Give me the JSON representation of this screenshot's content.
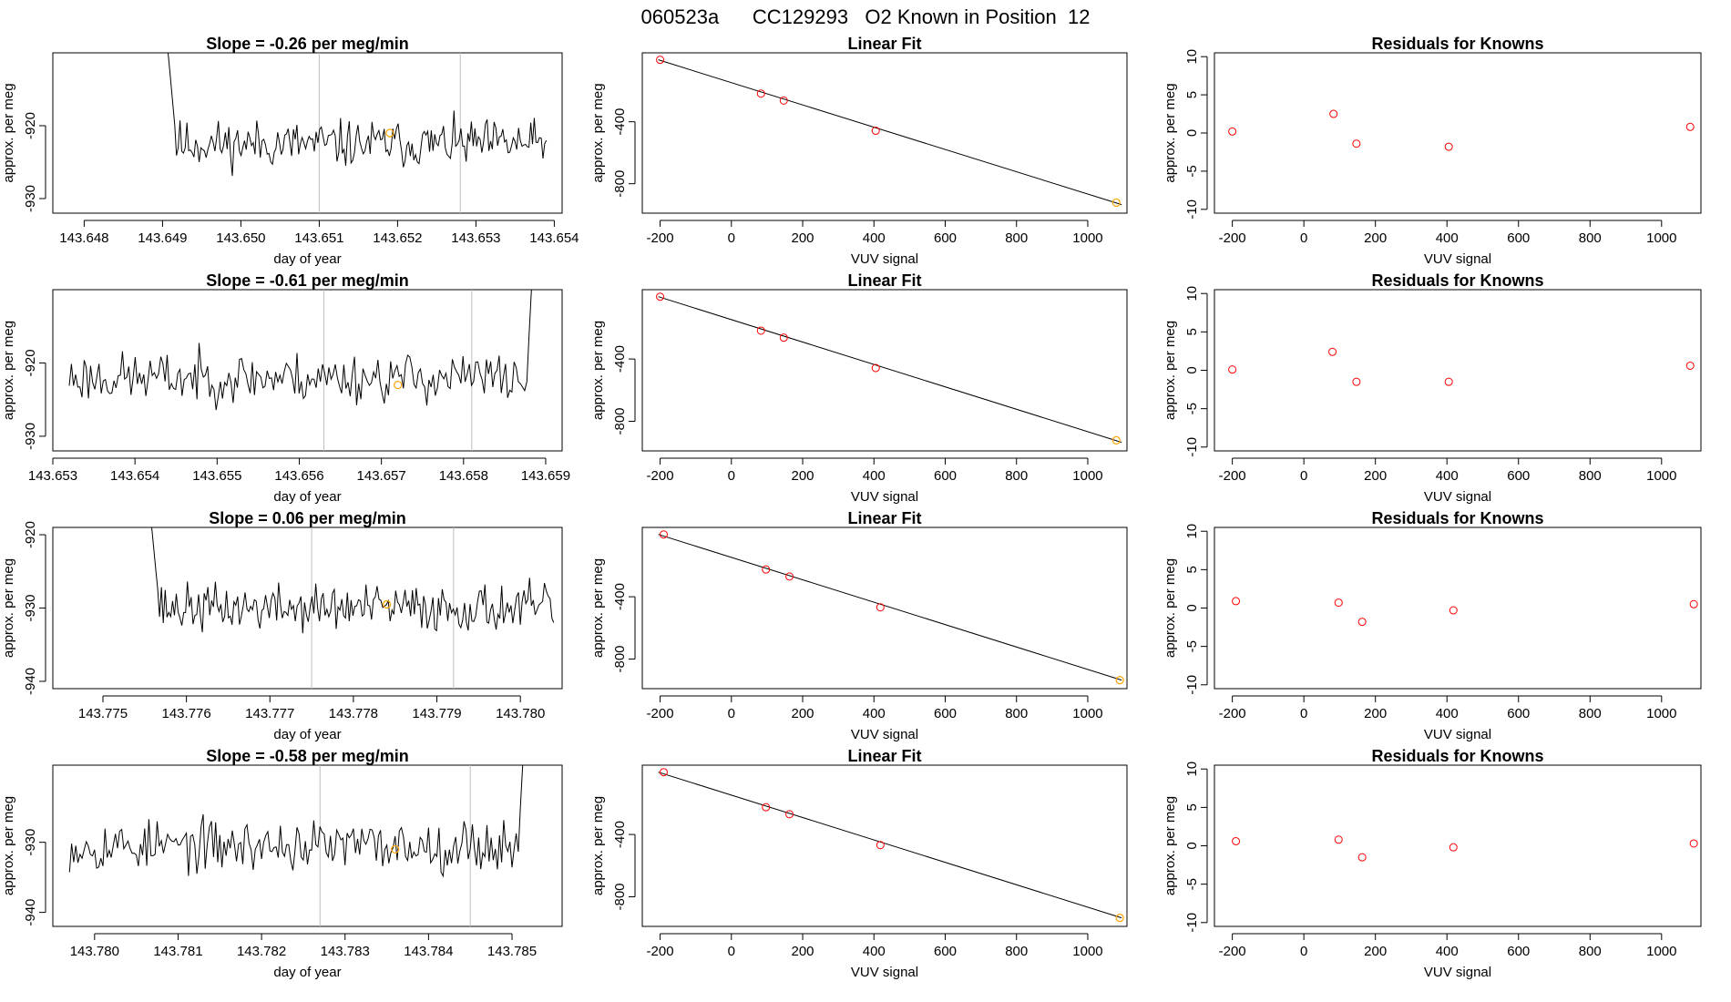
{
  "figure": {
    "title": "060523a      CC129293   O2 Known in Position  12"
  },
  "colors": {
    "trace": "#000000",
    "frame": "#000000",
    "vline": "#bebebe",
    "orange": "#ffa500",
    "red": "#ff0000"
  },
  "chart_data": [
    {
      "type": "line",
      "panel": "row1-timeseries",
      "title": "Slope =  -0.26  per meg/min",
      "xlabel": "day of year",
      "ylabel": "approx. per meg",
      "xlim": [
        143.6476,
        143.6541
      ],
      "ylim": [
        -932,
        -910
      ],
      "xticks": [
        143.648,
        143.649,
        143.65,
        143.651,
        143.652,
        143.653,
        143.654
      ],
      "xtick_labels": [
        "143.648",
        "143.649",
        "143.650",
        "143.651",
        "143.652",
        "143.653",
        "143.654"
      ],
      "yticks": [
        -930,
        -920
      ],
      "ytick_labels": [
        "-930",
        "-920"
      ],
      "trace": {
        "x_start": 143.649,
        "x_end": 143.6539,
        "baseline": -922.5,
        "noise": 1.6,
        "spike_start": true,
        "spike_end": false,
        "seed": 11
      },
      "vlines": [
        143.651,
        143.6528
      ],
      "orange_point": {
        "x": 143.6519,
        "y": -921
      }
    },
    {
      "type": "scatter",
      "panel": "row1-linear-fit",
      "title": "Linear Fit",
      "xlabel": "VUV signal",
      "ylabel": "approx. per meg",
      "xlim": [
        -250,
        1110
      ],
      "ylim": [
        -990,
        45
      ],
      "xticks": [
        -200,
        0,
        200,
        400,
        600,
        800,
        1000
      ],
      "xtick_labels": [
        "-200",
        "0",
        "200",
        "400",
        "600",
        "800",
        "1000"
      ],
      "yticks": [
        -800,
        -400
      ],
      "ytick_labels": [
        "-800",
        "-400"
      ],
      "fit_line": {
        "x": [
          -205,
          1095
        ],
        "y": [
          0,
          -935
        ]
      },
      "points": [
        {
          "x": -200,
          "y": 0
        },
        {
          "x": 83,
          "y": -218
        },
        {
          "x": 147,
          "y": -263
        },
        {
          "x": 405,
          "y": -458
        }
      ],
      "orange_points": [
        {
          "x": 1080,
          "y": -922
        }
      ]
    },
    {
      "type": "scatter",
      "panel": "row1-residuals",
      "title": "Residuals for Knowns",
      "xlabel": "VUV signal",
      "ylabel": "approx. per meg",
      "xlim": [
        -250,
        1110
      ],
      "ylim": [
        -10.5,
        10.5
      ],
      "xticks": [
        -200,
        0,
        200,
        400,
        600,
        800,
        1000
      ],
      "xtick_labels": [
        "-200",
        "0",
        "200",
        "400",
        "600",
        "800",
        "1000"
      ],
      "yticks": [
        -10,
        -5,
        0,
        5,
        10
      ],
      "ytick_labels": [
        "-10",
        "-5",
        "0",
        "5",
        "10"
      ],
      "points": [
        {
          "x": -200,
          "y": 0.2
        },
        {
          "x": 83,
          "y": 2.5
        },
        {
          "x": 147,
          "y": -1.4
        },
        {
          "x": 405,
          "y": -1.8
        },
        {
          "x": 1080,
          "y": 0.8
        }
      ]
    },
    {
      "type": "line",
      "panel": "row2-timeseries",
      "title": "Slope =  -0.61  per meg/min",
      "xlabel": "day of year",
      "ylabel": "approx. per meg",
      "xlim": [
        143.653,
        143.6592
      ],
      "ylim": [
        -932,
        -910
      ],
      "xticks": [
        143.653,
        143.654,
        143.655,
        143.656,
        143.657,
        143.658,
        143.659
      ],
      "xtick_labels": [
        "143.653",
        "143.654",
        "143.655",
        "143.656",
        "143.657",
        "143.658",
        "143.659"
      ],
      "yticks": [
        -930,
        -920
      ],
      "ytick_labels": [
        "-930",
        "-920"
      ],
      "trace": {
        "x_start": 143.6532,
        "x_end": 143.6589,
        "baseline": -922,
        "noise": 1.7,
        "spike_start": false,
        "spike_end": true,
        "seed": 23
      },
      "vlines": [
        143.6563,
        143.6581
      ],
      "orange_point": {
        "x": 143.6572,
        "y": -923
      }
    },
    {
      "type": "scatter",
      "panel": "row2-linear-fit",
      "title": "Linear Fit",
      "xlabel": "VUV signal",
      "ylabel": "approx. per meg",
      "xlim": [
        -250,
        1110
      ],
      "ylim": [
        -990,
        45
      ],
      "xticks": [
        -200,
        0,
        200,
        400,
        600,
        800,
        1000
      ],
      "xtick_labels": [
        "-200",
        "0",
        "200",
        "400",
        "600",
        "800",
        "1000"
      ],
      "yticks": [
        -800,
        -400
      ],
      "ytick_labels": [
        "-800",
        "-400"
      ],
      "fit_line": {
        "x": [
          -205,
          1095
        ],
        "y": [
          0,
          -935
        ]
      },
      "points": [
        {
          "x": -200,
          "y": 0
        },
        {
          "x": 83,
          "y": -218
        },
        {
          "x": 147,
          "y": -263
        },
        {
          "x": 405,
          "y": -458
        }
      ],
      "orange_points": [
        {
          "x": 1080,
          "y": -922
        }
      ]
    },
    {
      "type": "scatter",
      "panel": "row2-residuals",
      "title": "Residuals for Knowns",
      "xlabel": "VUV signal",
      "ylabel": "approx. per meg",
      "xlim": [
        -250,
        1110
      ],
      "ylim": [
        -10.5,
        10.5
      ],
      "xticks": [
        -200,
        0,
        200,
        400,
        600,
        800,
        1000
      ],
      "xtick_labels": [
        "-200",
        "0",
        "200",
        "400",
        "600",
        "800",
        "1000"
      ],
      "yticks": [
        -10,
        -5,
        0,
        5,
        10
      ],
      "ytick_labels": [
        "-10",
        "-5",
        "0",
        "5",
        "10"
      ],
      "points": [
        {
          "x": -200,
          "y": 0.1
        },
        {
          "x": 80,
          "y": 2.4
        },
        {
          "x": 147,
          "y": -1.5
        },
        {
          "x": 405,
          "y": -1.5
        },
        {
          "x": 1080,
          "y": 0.6
        }
      ]
    },
    {
      "type": "line",
      "panel": "row3-timeseries",
      "title": "Slope =  0.06  per meg/min",
      "xlabel": "day of year",
      "ylabel": "approx. per meg",
      "xlim": [
        143.7744,
        143.7805
      ],
      "ylim": [
        -941,
        -919
      ],
      "xticks": [
        143.775,
        143.776,
        143.777,
        143.778,
        143.779,
        143.78
      ],
      "xtick_labels": [
        "143.775",
        "143.776",
        "143.777",
        "143.778",
        "143.779",
        "143.780"
      ],
      "yticks": [
        -940,
        -930,
        -920
      ],
      "ytick_labels": [
        "-940",
        "-930",
        "-920"
      ],
      "trace": {
        "x_start": 143.7755,
        "x_end": 143.7804,
        "baseline": -930,
        "noise": 1.6,
        "spike_start": true,
        "spike_end": false,
        "seed": 37
      },
      "vlines": [
        143.7775,
        143.7792
      ],
      "orange_point": {
        "x": 143.7784,
        "y": -929.5
      }
    },
    {
      "type": "scatter",
      "panel": "row3-linear-fit",
      "title": "Linear Fit",
      "xlabel": "VUV signal",
      "ylabel": "approx. per meg",
      "xlim": [
        -250,
        1110
      ],
      "ylim": [
        -990,
        45
      ],
      "xticks": [
        -200,
        0,
        200,
        400,
        600,
        800,
        1000
      ],
      "xtick_labels": [
        "-200",
        "0",
        "200",
        "400",
        "600",
        "800",
        "1000"
      ],
      "yticks": [
        -800,
        -400
      ],
      "ytick_labels": [
        "-800",
        "-400"
      ],
      "fit_line": {
        "x": [
          -205,
          1095
        ],
        "y": [
          0,
          -935
        ]
      },
      "points": [
        {
          "x": -190,
          "y": 0
        },
        {
          "x": 97,
          "y": -225
        },
        {
          "x": 163,
          "y": -270
        },
        {
          "x": 418,
          "y": -468
        }
      ],
      "orange_points": [
        {
          "x": 1090,
          "y": -935
        }
      ]
    },
    {
      "type": "scatter",
      "panel": "row3-residuals",
      "title": "Residuals for Knowns",
      "xlabel": "VUV signal",
      "ylabel": "approx. per meg",
      "xlim": [
        -250,
        1110
      ],
      "ylim": [
        -10.5,
        10.5
      ],
      "xticks": [
        -200,
        0,
        200,
        400,
        600,
        800,
        1000
      ],
      "xtick_labels": [
        "-200",
        "0",
        "200",
        "400",
        "600",
        "800",
        "1000"
      ],
      "yticks": [
        -10,
        -5,
        0,
        5,
        10
      ],
      "ytick_labels": [
        "-10",
        "-5",
        "0",
        "5",
        "10"
      ],
      "points": [
        {
          "x": -190,
          "y": 0.9
        },
        {
          "x": 97,
          "y": 0.7
        },
        {
          "x": 163,
          "y": -1.8
        },
        {
          "x": 418,
          "y": -0.3
        },
        {
          "x": 1090,
          "y": 0.5
        }
      ]
    },
    {
      "type": "line",
      "panel": "row4-timeseries",
      "title": "Slope =  -0.58  per meg/min",
      "xlabel": "day of year",
      "ylabel": "approx. per meg",
      "xlim": [
        143.7795,
        143.7856
      ],
      "ylim": [
        -942,
        -919
      ],
      "xticks": [
        143.78,
        143.781,
        143.782,
        143.783,
        143.784,
        143.785
      ],
      "xtick_labels": [
        "143.780",
        "143.781",
        "143.782",
        "143.783",
        "143.784",
        "143.785"
      ],
      "yticks": [
        -940,
        -930
      ],
      "ytick_labels": [
        "-940",
        "-930"
      ],
      "trace": {
        "x_start": 143.7797,
        "x_end": 143.7852,
        "baseline": -930.5,
        "noise": 1.8,
        "spike_start": false,
        "spike_end": true,
        "seed": 53
      },
      "vlines": [
        143.7827,
        143.7845
      ],
      "orange_point": {
        "x": 143.7836,
        "y": -931
      }
    },
    {
      "type": "scatter",
      "panel": "row4-linear-fit",
      "title": "Linear Fit",
      "xlabel": "VUV signal",
      "ylabel": "approx. per meg",
      "xlim": [
        -250,
        1110
      ],
      "ylim": [
        -990,
        45
      ],
      "xticks": [
        -200,
        0,
        200,
        400,
        600,
        800,
        1000
      ],
      "xtick_labels": [
        "-200",
        "0",
        "200",
        "400",
        "600",
        "800",
        "1000"
      ],
      "yticks": [
        -800,
        -400
      ],
      "ytick_labels": [
        "-800",
        "-400"
      ],
      "fit_line": {
        "x": [
          -205,
          1095
        ],
        "y": [
          0,
          -935
        ]
      },
      "points": [
        {
          "x": -190,
          "y": 0
        },
        {
          "x": 97,
          "y": -225
        },
        {
          "x": 163,
          "y": -270
        },
        {
          "x": 418,
          "y": -468
        }
      ],
      "orange_points": [
        {
          "x": 1090,
          "y": -935
        }
      ]
    },
    {
      "type": "scatter",
      "panel": "row4-residuals",
      "title": "Residuals for Knowns",
      "xlabel": "VUV signal",
      "ylabel": "approx. per meg",
      "xlim": [
        -250,
        1110
      ],
      "ylim": [
        -10.5,
        10.5
      ],
      "xticks": [
        -200,
        0,
        200,
        400,
        600,
        800,
        1000
      ],
      "xtick_labels": [
        "-200",
        "0",
        "200",
        "400",
        "600",
        "800",
        "1000"
      ],
      "yticks": [
        -10,
        -5,
        0,
        5,
        10
      ],
      "ytick_labels": [
        "-10",
        "-5",
        "0",
        "5",
        "10"
      ],
      "points": [
        {
          "x": -190,
          "y": 0.6
        },
        {
          "x": 97,
          "y": 0.8
        },
        {
          "x": 163,
          "y": -1.5
        },
        {
          "x": 418,
          "y": -0.2
        },
        {
          "x": 1090,
          "y": 0.3
        }
      ]
    }
  ]
}
